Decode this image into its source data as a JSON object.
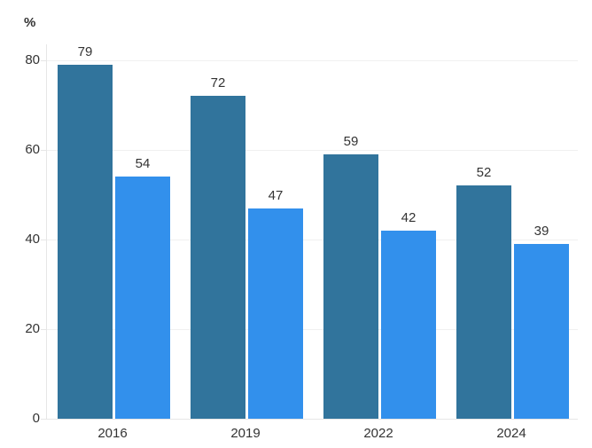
{
  "chart_data": {
    "type": "bar",
    "title": "",
    "ylabel": "%",
    "xlabel": "",
    "categories": [
      "2016",
      "2019",
      "2022",
      "2024"
    ],
    "series": [
      {
        "color": "#31749C",
        "values": [
          79,
          72,
          59,
          52
        ]
      },
      {
        "color": "#3290EC",
        "values": [
          54,
          47,
          42,
          39
        ]
      }
    ],
    "ylim": [
      0,
      80
    ],
    "yticks": [
      0,
      20,
      40,
      60,
      80
    ],
    "grid": true,
    "legend_position": "none",
    "data_labels": true
  },
  "colors": {
    "grid_line": "#f0f0f0",
    "axis_line": "#e6e6e6",
    "label_text": "#333333",
    "background": "#ffffff"
  }
}
